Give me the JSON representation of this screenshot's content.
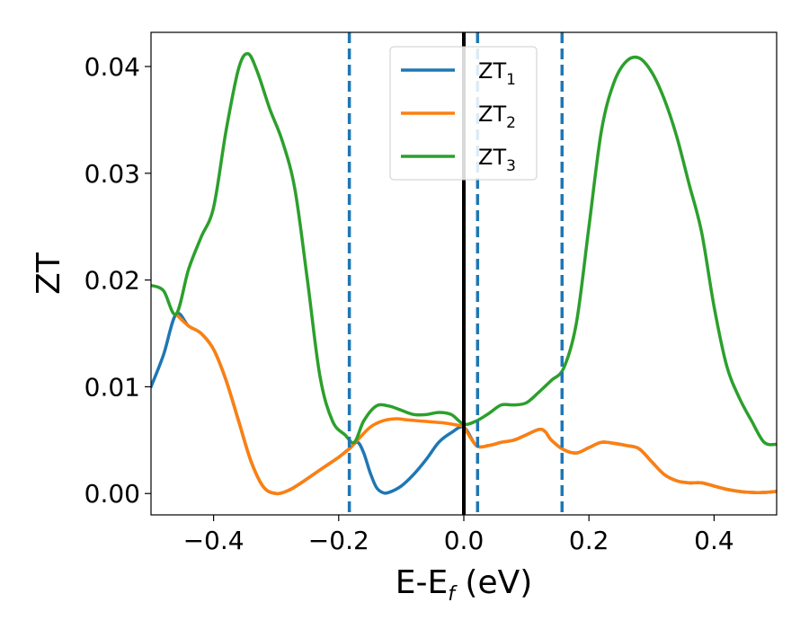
{
  "chart_data": {
    "type": "line",
    "title": "",
    "xlabel": {
      "main": "E-E",
      "sub": "f",
      "suffix": " (eV)"
    },
    "ylabel": "ZT",
    "xlim": [
      -0.5,
      0.5
    ],
    "ylim": [
      -0.002,
      0.0432
    ],
    "x_ticks": [
      -0.4,
      -0.2,
      0.0,
      0.2,
      0.4
    ],
    "x_tick_labels": [
      "−0.4",
      "−0.2",
      "0.0",
      "0.2",
      "0.4"
    ],
    "y_ticks": [
      0.0,
      0.01,
      0.02,
      0.03,
      0.04
    ],
    "y_tick_labels": [
      "0.00",
      "0.01",
      "0.02",
      "0.03",
      "0.04"
    ],
    "grid": false,
    "legend_placement": "top-center",
    "vlines": [
      {
        "x": 0.0,
        "style": "solid",
        "color": "#000000"
      },
      {
        "x": -0.183,
        "style": "dashed",
        "color": "#1f77b4"
      },
      {
        "x": 0.022,
        "style": "dashed",
        "color": "#1f77b4"
      },
      {
        "x": 0.157,
        "style": "dashed",
        "color": "#1f77b4"
      }
    ],
    "series": [
      {
        "name": "ZT",
        "sub": "1",
        "color": "#1f77b4",
        "x": [
          -0.5,
          -0.48,
          -0.46,
          -0.44,
          -0.42,
          -0.4,
          -0.38,
          -0.36,
          -0.34,
          -0.32,
          -0.3,
          -0.28,
          -0.26,
          -0.24,
          -0.22,
          -0.2,
          -0.183,
          -0.17,
          -0.16,
          -0.15,
          -0.14,
          -0.13,
          -0.12,
          -0.1,
          -0.08,
          -0.06,
          -0.04,
          -0.02,
          0.0,
          0.02,
          0.04,
          0.06,
          0.08,
          0.1,
          0.12,
          0.13,
          0.14,
          0.16,
          0.18,
          0.2,
          0.22,
          0.24,
          0.26,
          0.28,
          0.3,
          0.32,
          0.34,
          0.36,
          0.38,
          0.4,
          0.42,
          0.44,
          0.46,
          0.48,
          0.5
        ],
        "values": [
          0.01,
          0.013,
          0.0168,
          0.0157,
          0.015,
          0.0135,
          0.0106,
          0.0068,
          0.003,
          0.0006,
          0.0,
          0.0003,
          0.001,
          0.0018,
          0.0026,
          0.0034,
          0.0042,
          0.0048,
          0.0038,
          0.002,
          0.0006,
          0.0001,
          0.0001,
          0.0007,
          0.0018,
          0.0032,
          0.0048,
          0.0057,
          0.0062,
          0.0045,
          0.0045,
          0.0048,
          0.005,
          0.0055,
          0.006,
          0.0058,
          0.005,
          0.0041,
          0.0038,
          0.0043,
          0.0048,
          0.0047,
          0.0045,
          0.0042,
          0.003,
          0.0018,
          0.0012,
          0.001,
          0.001,
          0.0007,
          0.0004,
          0.0002,
          0.0001,
          0.0001,
          0.0002
        ]
      },
      {
        "name": "ZT",
        "sub": "2",
        "color": "#ff7f0e",
        "x": [
          -0.46,
          -0.44,
          -0.42,
          -0.4,
          -0.38,
          -0.36,
          -0.34,
          -0.32,
          -0.3,
          -0.28,
          -0.26,
          -0.24,
          -0.22,
          -0.2,
          -0.183,
          -0.17,
          -0.15,
          -0.13,
          -0.11,
          -0.09,
          -0.07,
          -0.05,
          -0.03,
          -0.01,
          0.0,
          0.02,
          0.04,
          0.06,
          0.08,
          0.1,
          0.12,
          0.13,
          0.14,
          0.16,
          0.18,
          0.2,
          0.22,
          0.24,
          0.26,
          0.28,
          0.3,
          0.32,
          0.34,
          0.36,
          0.38,
          0.4,
          0.42,
          0.44,
          0.46,
          0.48,
          0.5
        ],
        "values": [
          0.0168,
          0.0157,
          0.015,
          0.0135,
          0.0106,
          0.0068,
          0.003,
          0.0006,
          0.0,
          0.0003,
          0.001,
          0.0018,
          0.0026,
          0.0034,
          0.0042,
          0.005,
          0.0062,
          0.0068,
          0.007,
          0.0069,
          0.0068,
          0.0067,
          0.0066,
          0.0064,
          0.0062,
          0.0045,
          0.0045,
          0.0048,
          0.005,
          0.0055,
          0.006,
          0.0058,
          0.005,
          0.0041,
          0.0038,
          0.0043,
          0.0048,
          0.0047,
          0.0045,
          0.0042,
          0.003,
          0.0018,
          0.0012,
          0.001,
          0.001,
          0.0007,
          0.0004,
          0.0002,
          0.0001,
          0.0001,
          0.0002
        ]
      },
      {
        "name": "ZT",
        "sub": "3",
        "color": "#2ca02c",
        "x": [
          -0.5,
          -0.48,
          -0.46,
          -0.44,
          -0.42,
          -0.4,
          -0.38,
          -0.36,
          -0.345,
          -0.33,
          -0.31,
          -0.29,
          -0.27,
          -0.25,
          -0.23,
          -0.21,
          -0.19,
          -0.175,
          -0.16,
          -0.14,
          -0.12,
          -0.1,
          -0.08,
          -0.06,
          -0.04,
          -0.02,
          0.0,
          0.02,
          0.04,
          0.06,
          0.08,
          0.1,
          0.12,
          0.14,
          0.16,
          0.18,
          0.2,
          0.22,
          0.24,
          0.26,
          0.28,
          0.3,
          0.32,
          0.34,
          0.36,
          0.38,
          0.4,
          0.42,
          0.44,
          0.46,
          0.48,
          0.5
        ],
        "values": [
          0.0195,
          0.019,
          0.0168,
          0.021,
          0.024,
          0.0268,
          0.034,
          0.0398,
          0.0412,
          0.0395,
          0.036,
          0.033,
          0.0285,
          0.02,
          0.011,
          0.0068,
          0.0055,
          0.0048,
          0.0068,
          0.0082,
          0.0082,
          0.0078,
          0.0074,
          0.0074,
          0.0076,
          0.0074,
          0.0065,
          0.0068,
          0.0075,
          0.0083,
          0.0083,
          0.0085,
          0.0095,
          0.0106,
          0.0118,
          0.016,
          0.025,
          0.034,
          0.0385,
          0.0405,
          0.0408,
          0.0395,
          0.037,
          0.0335,
          0.029,
          0.0245,
          0.0175,
          0.012,
          0.009,
          0.0068,
          0.0048,
          0.0046
        ]
      }
    ]
  }
}
